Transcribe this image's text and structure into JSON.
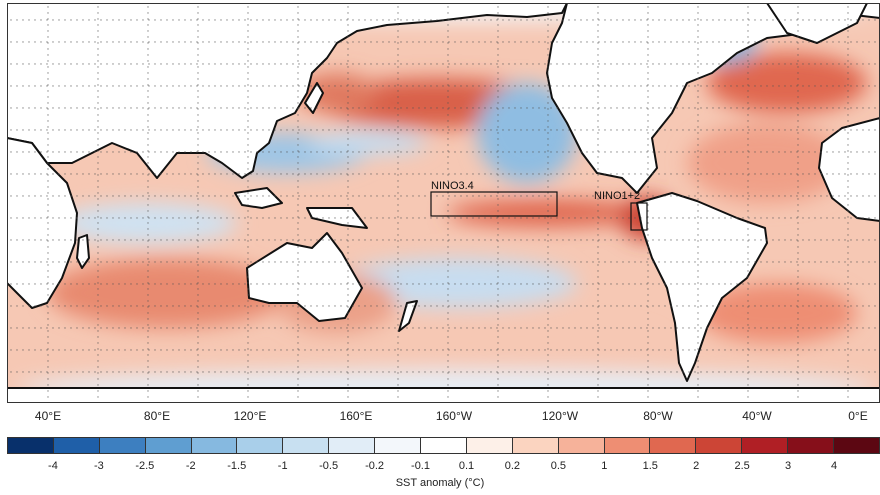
{
  "map": {
    "regions": [
      {
        "name": "NINO3.4",
        "label": "NINO3.4"
      },
      {
        "name": "NINO1+2",
        "label": "NINO1+2"
      }
    ],
    "longitude_labels": [
      "40°E",
      "80°E",
      "120°E",
      "160°E",
      "160°W",
      "120°W",
      "80°W",
      "40°W",
      "0°E"
    ],
    "colors": {
      "land": "#ffffff",
      "coast": "#111111",
      "grid_dots": "#555555"
    }
  },
  "colorbar": {
    "title": "SST anomaly (°C)",
    "ticks": [
      "-4",
      "-3",
      "-2.5",
      "-2",
      "-1.5",
      "-1",
      "-0.5",
      "-0.2",
      "-0.1",
      "0.1",
      "0.2",
      "0.5",
      "1",
      "1.5",
      "2",
      "2.5",
      "3",
      "4"
    ],
    "colors": [
      "#08306b",
      "#1f5fa8",
      "#3d7fc0",
      "#5f9ed1",
      "#86b9e0",
      "#a9cfea",
      "#c8e0f1",
      "#e1edf7",
      "#f3f7fb",
      "#ffffff",
      "#fdf0e8",
      "#fbd4c0",
      "#f6b29a",
      "#ee8e73",
      "#e06850",
      "#cc4536",
      "#b01f25",
      "#860f1a",
      "#5c0712"
    ]
  }
}
